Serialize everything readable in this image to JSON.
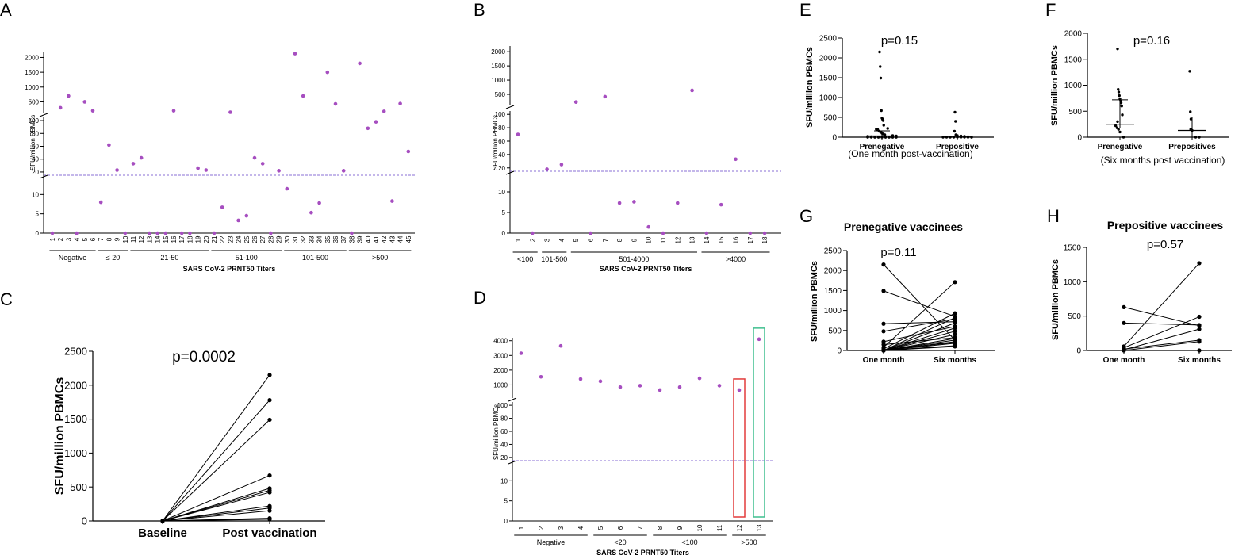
{
  "colors": {
    "dot": "#a64ec0",
    "dashed": "#8a6fd4",
    "axis": "#000000",
    "red_box": "#e23b3b",
    "green_box": "#3fbf8f"
  },
  "chart_data": [
    {
      "id": "A",
      "panel_label": "A",
      "type": "scatter",
      "xlabel": "SARS CoV-2 PRNT50 Titers",
      "ylabel": "SFU/million PBMCs",
      "x": [
        "1",
        "2",
        "3",
        "4",
        "5",
        "6",
        "7",
        "8",
        "9",
        "10",
        "11",
        "12",
        "13",
        "14",
        "15",
        "16",
        "17",
        "18",
        "19",
        "20",
        "21",
        "22",
        "23",
        "24",
        "25",
        "26",
        "27",
        "28",
        "29",
        "30",
        "31",
        "32",
        "33",
        "34",
        "35",
        "36",
        "37",
        "38",
        "39",
        "40",
        "41",
        "42",
        "43",
        "44",
        "45"
      ],
      "values": [
        0,
        300,
        700,
        0,
        500,
        200,
        8,
        62,
        23,
        0,
        33,
        42,
        0,
        0,
        0,
        200,
        0,
        0,
        26,
        23,
        0,
        6.7,
        150,
        3.3,
        4.5,
        42,
        33,
        0,
        22,
        11.5,
        2130,
        700,
        5.3,
        7.8,
        1500,
        430,
        22,
        0,
        1800,
        88,
        98,
        180,
        8.3,
        440,
        52
      ],
      "ylim_low": [
        0,
        15
      ],
      "yticks_low": [
        0,
        5,
        10
      ],
      "ylim_mid": [
        15,
        105
      ],
      "yticks_mid": [
        20,
        40,
        60,
        80,
        100
      ],
      "ylim_high": [
        110,
        2200
      ],
      "yticks_high": [
        500,
        1000,
        1500,
        2000
      ],
      "threshold": 15,
      "groups": [
        {
          "label": "Negative",
          "from": 1,
          "to": 6
        },
        {
          "label": "≤ 20",
          "from": 7,
          "to": 10
        },
        {
          "label": "21-50",
          "from": 11,
          "to": 20
        },
        {
          "label": "51-100",
          "from": 21,
          "to": 29
        },
        {
          "label": "101-500",
          "from": 30,
          "to": 37
        },
        {
          "label": ">500",
          "from": 38,
          "to": 45
        }
      ]
    },
    {
      "id": "B",
      "panel_label": "B",
      "type": "scatter",
      "xlabel": "SARS CoV-2 PRNT50 Titers",
      "ylabel": "SFU/million PBMCs",
      "x": [
        "1",
        "2",
        "3",
        "4",
        "5",
        "6",
        "7",
        "8",
        "9",
        "10",
        "11",
        "12",
        "13",
        "14",
        "15",
        "16",
        "17",
        "18"
      ],
      "values": [
        70,
        0,
        18,
        25,
        230,
        0,
        420,
        7.3,
        7.6,
        1.5,
        0,
        7.3,
        640,
        0,
        6.9,
        33,
        0,
        0
      ],
      "ylim_low": [
        0,
        15
      ],
      "yticks_low": [
        0,
        5,
        10
      ],
      "ylim_mid": [
        15,
        105
      ],
      "yticks_mid": [
        20,
        40,
        60,
        80,
        100
      ],
      "ylim_high": [
        110,
        2200
      ],
      "yticks_high": [
        500,
        1000,
        1500,
        2000
      ],
      "threshold": 15,
      "groups": [
        {
          "label": "<100",
          "from": 1,
          "to": 2
        },
        {
          "label": "101-500",
          "from": 3,
          "to": 4
        },
        {
          "label": "501-4000",
          "from": 5,
          "to": 13
        },
        {
          "label": ">4000",
          "from": 14,
          "to": 18
        }
      ]
    },
    {
      "id": "C",
      "panel_label": "C",
      "type": "line",
      "annotation": "p=0.0002",
      "ylabel": "SFU/million PBMCs",
      "categories": [
        "Baseline",
        "Post vaccination"
      ],
      "ylim": [
        0,
        2500
      ],
      "yticks": [
        0,
        500,
        1000,
        1500,
        2000,
        2500
      ],
      "pairs": [
        [
          0,
          2150
        ],
        [
          0,
          1780
        ],
        [
          0,
          1490
        ],
        [
          0,
          670
        ],
        [
          0,
          480
        ],
        [
          0,
          450
        ],
        [
          0,
          420
        ],
        [
          0,
          220
        ],
        [
          0,
          190
        ],
        [
          0,
          150
        ],
        [
          0,
          40
        ],
        [
          0,
          25
        ]
      ]
    },
    {
      "id": "D",
      "panel_label": "D",
      "type": "scatter",
      "xlabel": "SARS CoV-2 PRNT50 Titers",
      "ylabel": "SFU/million PBMCs",
      "x": [
        "1",
        "2",
        "3",
        "4",
        "5",
        "6",
        "7",
        "8",
        "9",
        "10",
        "11",
        "12",
        "13"
      ],
      "values": [
        3150,
        1550,
        3650,
        1400,
        1250,
        850,
        950,
        650,
        850,
        1450,
        950,
        650,
        4100
      ],
      "ylim_low": [
        0,
        15
      ],
      "yticks_low": [
        0,
        5,
        10
      ],
      "ylim_mid": [
        15,
        105
      ],
      "yticks_mid": [
        20,
        40,
        60,
        80,
        100
      ],
      "ylim_high": [
        110,
        4200
      ],
      "yticks_high": [
        1000,
        2000,
        3000,
        4000
      ],
      "threshold": 15,
      "groups": [
        {
          "label": "Negative",
          "from": 1,
          "to": 4
        },
        {
          "label": "<20",
          "from": 5,
          "to": 7
        },
        {
          "label": "<100",
          "from": 8,
          "to": 11
        },
        {
          "label": ">500",
          "from": 12,
          "to": 13
        }
      ],
      "highlight_boxes": [
        {
          "x": "12",
          "color": "red"
        },
        {
          "x": "13",
          "color": "green"
        }
      ]
    },
    {
      "id": "E",
      "panel_label": "E",
      "type": "scatter",
      "annotation": "p=0.15",
      "ylabel": "SFU/million PBMCs",
      "categories": [
        "Prenegative",
        "Prepositive"
      ],
      "subtitle": "(One month post-vaccination)",
      "ylim": [
        0,
        2500
      ],
      "yticks": [
        0,
        500,
        1000,
        1500,
        2000,
        2500
      ],
      "series": [
        {
          "name": "Prenegative",
          "values": [
            2150,
            1780,
            1490,
            670,
            480,
            450,
            420,
            300,
            220,
            200,
            190,
            150,
            130,
            100,
            80,
            60,
            40,
            30,
            20,
            10,
            0,
            0,
            0,
            0,
            0,
            0,
            0,
            0,
            0,
            0,
            0,
            0,
            0,
            0,
            0,
            0,
            0
          ],
          "median": 30,
          "q1": 0,
          "q3": 160
        },
        {
          "name": "Prepositive",
          "values": [
            630,
            400,
            150,
            60,
            40,
            30,
            20,
            10,
            0,
            0,
            0,
            0,
            0,
            0,
            0,
            0,
            0,
            0
          ],
          "median": 5,
          "q1": 0,
          "q3": 30
        }
      ]
    },
    {
      "id": "F",
      "panel_label": "F",
      "type": "scatter",
      "annotation": "p=0.16",
      "ylabel": "SFU/million PBMCs",
      "categories": [
        "Prenegative",
        "Prepositives"
      ],
      "subtitle": "(Six months post vaccination)",
      "ylim": [
        0,
        2000
      ],
      "yticks": [
        0,
        500,
        1000,
        1500,
        2000
      ],
      "series": [
        {
          "name": "Prenegative",
          "values": [
            1700,
            920,
            870,
            800,
            740,
            700,
            660,
            600,
            430,
            300,
            220,
            180,
            150,
            100,
            0
          ],
          "median": 250,
          "q1": 180,
          "q3": 720
        },
        {
          "name": "Prepositives",
          "values": [
            1270,
            490,
            350,
            150,
            130,
            0,
            0
          ],
          "median": 130,
          "q1": 0,
          "q3": 390
        }
      ]
    },
    {
      "id": "G",
      "panel_label": "G",
      "type": "line",
      "title": "Prenegative vaccinees",
      "annotation": "p=0.11",
      "ylabel": "SFU/million PBMCs",
      "categories": [
        "One month",
        "Six months"
      ],
      "ylim": [
        0,
        2500
      ],
      "yticks": [
        0,
        500,
        1000,
        1500,
        2000,
        2500
      ],
      "pairs": [
        [
          2150,
          260
        ],
        [
          1490,
          850
        ],
        [
          670,
          720
        ],
        [
          480,
          790
        ],
        [
          220,
          600
        ],
        [
          150,
          320
        ],
        [
          80,
          1710
        ],
        [
          40,
          930
        ],
        [
          20,
          200
        ],
        [
          0,
          820
        ],
        [
          0,
          690
        ],
        [
          0,
          560
        ],
        [
          0,
          480
        ],
        [
          0,
          400
        ],
        [
          0,
          300
        ],
        [
          0,
          180
        ],
        [
          0,
          120
        ],
        [
          0,
          100
        ],
        [
          0,
          220
        ],
        [
          0,
          260
        ]
      ]
    },
    {
      "id": "H",
      "panel_label": "H",
      "type": "line",
      "title": "Prepositive vaccinees",
      "annotation": "p=0.57",
      "ylabel": "SFU/million PBMCs",
      "categories": [
        "One month",
        "Six months"
      ],
      "ylim": [
        0,
        1500
      ],
      "yticks": [
        0,
        500,
        1000,
        1500
      ],
      "pairs": [
        [
          630,
          360
        ],
        [
          400,
          370
        ],
        [
          60,
          1270
        ],
        [
          40,
          490
        ],
        [
          20,
          150
        ],
        [
          10,
          310
        ],
        [
          0,
          130
        ],
        [
          0,
          0
        ]
      ]
    }
  ]
}
